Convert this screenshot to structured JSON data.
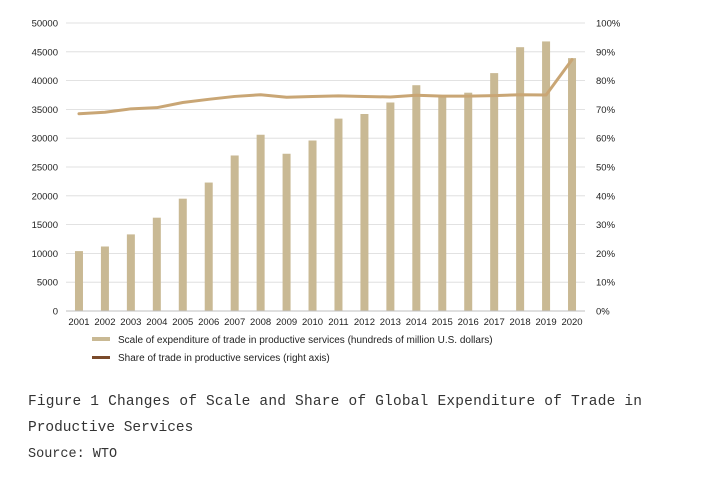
{
  "chart_data": {
    "type": "bar",
    "categories": [
      "2001",
      "2002",
      "2003",
      "2004",
      "2005",
      "2006",
      "2007",
      "2008",
      "2009",
      "2010",
      "2011",
      "2012",
      "2013",
      "2014",
      "2015",
      "2016",
      "2017",
      "2018",
      "2019",
      "2020"
    ],
    "series": [
      {
        "name": "Scale of expenditure of trade in productive services (hundreds of million U.S. dollars)",
        "type": "bar",
        "axis": "left",
        "color": "#c9b994",
        "values": [
          10400,
          11200,
          13300,
          16200,
          19500,
          22300,
          27000,
          30600,
          27300,
          29600,
          33400,
          34200,
          36200,
          39200,
          37400,
          37900,
          41300,
          45800,
          46800,
          43900
        ]
      },
      {
        "name": "Share of trade in productive services (right axis)",
        "type": "line",
        "axis": "right",
        "color": "#c9a675",
        "values": [
          68.5,
          69.0,
          70.2,
          70.6,
          72.4,
          73.5,
          74.5,
          75.1,
          74.2,
          74.5,
          74.7,
          74.5,
          74.3,
          74.9,
          74.6,
          74.6,
          74.8,
          75.1,
          75.0,
          87.3
        ]
      }
    ],
    "ylim_left": [
      0,
      50000
    ],
    "yticks_left": [
      "0",
      "5000",
      "10000",
      "15000",
      "20000",
      "25000",
      "30000",
      "35000",
      "40000",
      "45000",
      "50000"
    ],
    "ylim_right": [
      0,
      100
    ],
    "yticks_right": [
      "0%",
      "10%",
      "20%",
      "30%",
      "40%",
      "50%",
      "60%",
      "70%",
      "80%",
      "90%",
      "100%"
    ],
    "legend": [
      {
        "label": "Scale of expenditure of trade in productive services (hundreds of million U.S. dollars)",
        "color": "#c9b994"
      },
      {
        "label": "Share of trade in productive services (right axis)",
        "color": "#7a4a2a"
      }
    ],
    "legend_position": "bottom-left",
    "grid": true
  },
  "caption": {
    "line1": "Figure 1 Changes of Scale and Share of Global Expenditure of Trade in",
    "line2": "Productive Services",
    "source": "Source: WTO"
  }
}
